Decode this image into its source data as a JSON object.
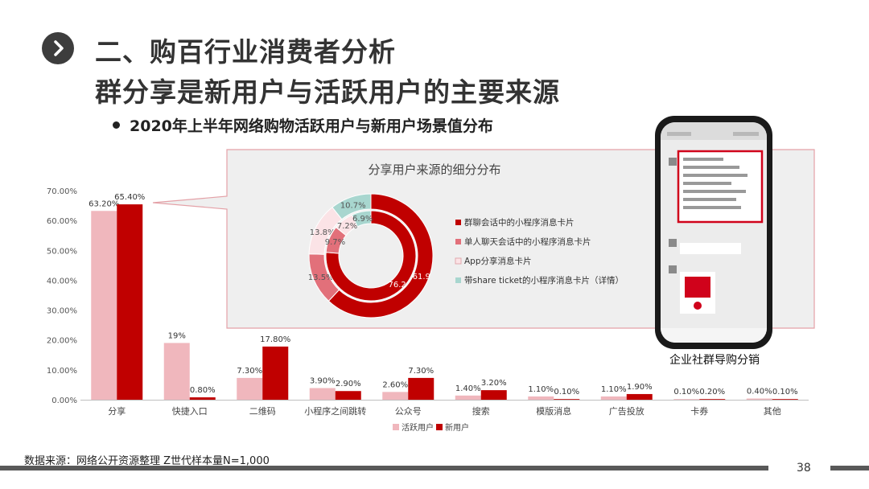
{
  "header": {
    "title": "二、购百行业消费者分析",
    "subtitle": "群分享是新用户与活跃用户的主要来源",
    "bullet": "2020年上半年网络购物活跃用户与新用户场景值分布"
  },
  "footer": {
    "source": "数据来源：网络公开资源整理  Z世代样本量N=1,000",
    "page_number": "38"
  },
  "phone": {
    "caption": "企业社群导购分销"
  },
  "colors": {
    "active": "#f0b7bd",
    "new": "#c00000",
    "donut": [
      "#c00000",
      "#e2707a",
      "#fbe3e6",
      "#a8d6cf"
    ],
    "callout_border": "#e4a1a7",
    "callout_fill": "#efefef"
  },
  "chart_data": [
    {
      "type": "bar",
      "categories": [
        "分享",
        "快捷入口",
        "二维码",
        "小程序之间跳转",
        "公众号",
        "搜索",
        "模版消息",
        "广告投放",
        "卡券",
        "其他"
      ],
      "series": [
        {
          "name": "活跃用户",
          "values": [
            63.2,
            19,
            7.3,
            3.9,
            2.6,
            1.4,
            1.1,
            1.1,
            0.1,
            0.4
          ],
          "labels": [
            "63.20%",
            "19%",
            "7.30%",
            "3.90%",
            "2.60%",
            "1.40%",
            "1.10%",
            "1.10%",
            "0.10%",
            "0.40%"
          ]
        },
        {
          "name": "新用户",
          "values": [
            65.4,
            0.8,
            17.8,
            2.9,
            7.3,
            3.2,
            0.1,
            1.9,
            0.2,
            0.1
          ],
          "labels": [
            "65.40%",
            "0.80%",
            "17.80%",
            "2.90%",
            "7.30%",
            "3.20%",
            "0.10%",
            "1.90%",
            "0.20%",
            "0.10%"
          ]
        }
      ],
      "ylim": [
        0,
        70
      ],
      "yticks": [
        "0.00%",
        "10.00%",
        "20.00%",
        "30.00%",
        "40.00%",
        "50.00%",
        "60.00%",
        "70.00%"
      ],
      "legend_position": "bottom",
      "grid": false
    },
    {
      "type": "pie",
      "title": "分享用户来源的细分分布",
      "categories": [
        "群聊会话中的小程序消息卡片",
        "单人聊天会话中的小程序消息卡片",
        "App分享消息卡片",
        "带share ticket的小程序消息卡片（详情）"
      ],
      "rings": [
        {
          "ring": "outer",
          "values": [
            61.9,
            13.5,
            13.8,
            10.7
          ],
          "labels": [
            "61.9",
            "13.5%",
            "13.8%",
            "10.7%"
          ]
        },
        {
          "ring": "inner",
          "values": [
            76.2,
            9.7,
            7.2,
            6.9
          ],
          "labels": [
            "76.2",
            "9.7%",
            "7.2%",
            "6.9%"
          ]
        }
      ],
      "legend_position": "right"
    }
  ]
}
